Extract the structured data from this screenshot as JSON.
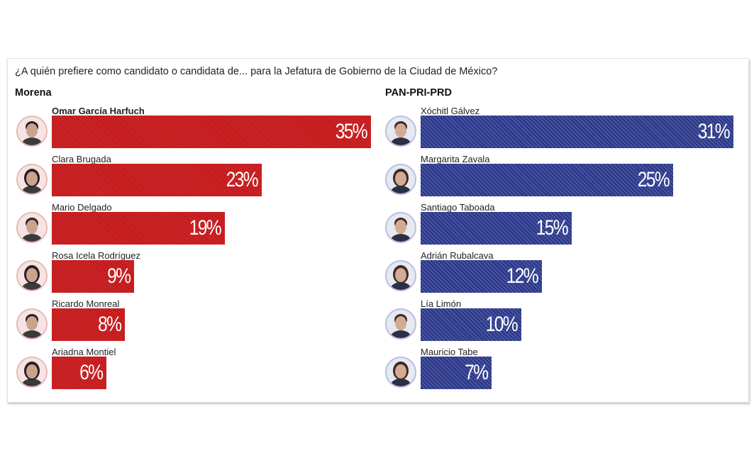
{
  "colors": {
    "morena": "#c41618",
    "pan_pri_prd": "#2d3a8c"
  },
  "question": "¿A quién prefiere como candidato o candidata de... para la Jefatura de Gobierno de la  Ciudad de México?",
  "chart_data": [
    {
      "type": "bar",
      "title": "Morena",
      "categories": [
        "Omar García Harfuch",
        "Clara Brugada",
        "Mario Delgado",
        "Rosa Icela Rodríguez",
        "Ricardo Monreal",
        "Ariadna Montiel"
      ],
      "values": [
        35,
        23,
        19,
        9,
        8,
        6
      ],
      "value_labels": [
        "35%",
        "23%",
        "19%",
        "9%",
        "8%",
        "6%"
      ],
      "unit": "%",
      "xlim": [
        0,
        35
      ]
    },
    {
      "type": "bar",
      "title": "PAN-PRI-PRD",
      "categories": [
        "Xóchitl Gálvez",
        "Margarita Zavala",
        "Santiago Taboada",
        "Adrián Rubalcava",
        "Lía Limón",
        "Mauricio Tabe"
      ],
      "values": [
        31,
        25,
        15,
        12,
        10,
        7
      ],
      "value_labels": [
        "31%",
        "25%",
        "15%",
        "12%",
        "10%",
        "7%"
      ],
      "unit": "%",
      "xlim": [
        0,
        31
      ]
    }
  ]
}
